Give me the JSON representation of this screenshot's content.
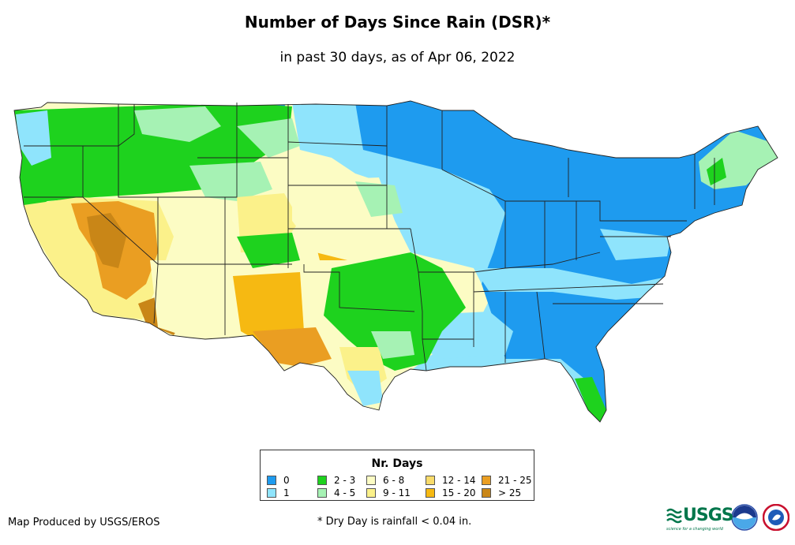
{
  "title": "Number of Days Since Rain (DSR)*",
  "subtitle": "in past 30 days, as of Apr 06, 2022",
  "legend": {
    "title": "Nr. Days",
    "items": [
      {
        "label": "0",
        "color": "#1e9bef"
      },
      {
        "label": "1",
        "color": "#8fe4fc"
      },
      {
        "label": "2 - 3",
        "color": "#1ed21e"
      },
      {
        "label": "4 - 5",
        "color": "#a6f2b4"
      },
      {
        "label": "6 - 8",
        "color": "#fcfcc4"
      },
      {
        "label": "9 - 11",
        "color": "#fbf18a"
      },
      {
        "label": "12 - 14",
        "color": "#f8db6a"
      },
      {
        "label": "15 - 20",
        "color": "#f6b912"
      },
      {
        "label": "21 - 25",
        "color": "#ea9e22"
      },
      {
        "label": "> 25",
        "color": "#c98617"
      }
    ]
  },
  "credit": "Map Produced by USGS/EROS",
  "footnote": "* Dry Day is rainfall < 0.04 in.",
  "logos": {
    "usgs": "USGS",
    "usgs_tagline": "science for a changing world"
  }
}
